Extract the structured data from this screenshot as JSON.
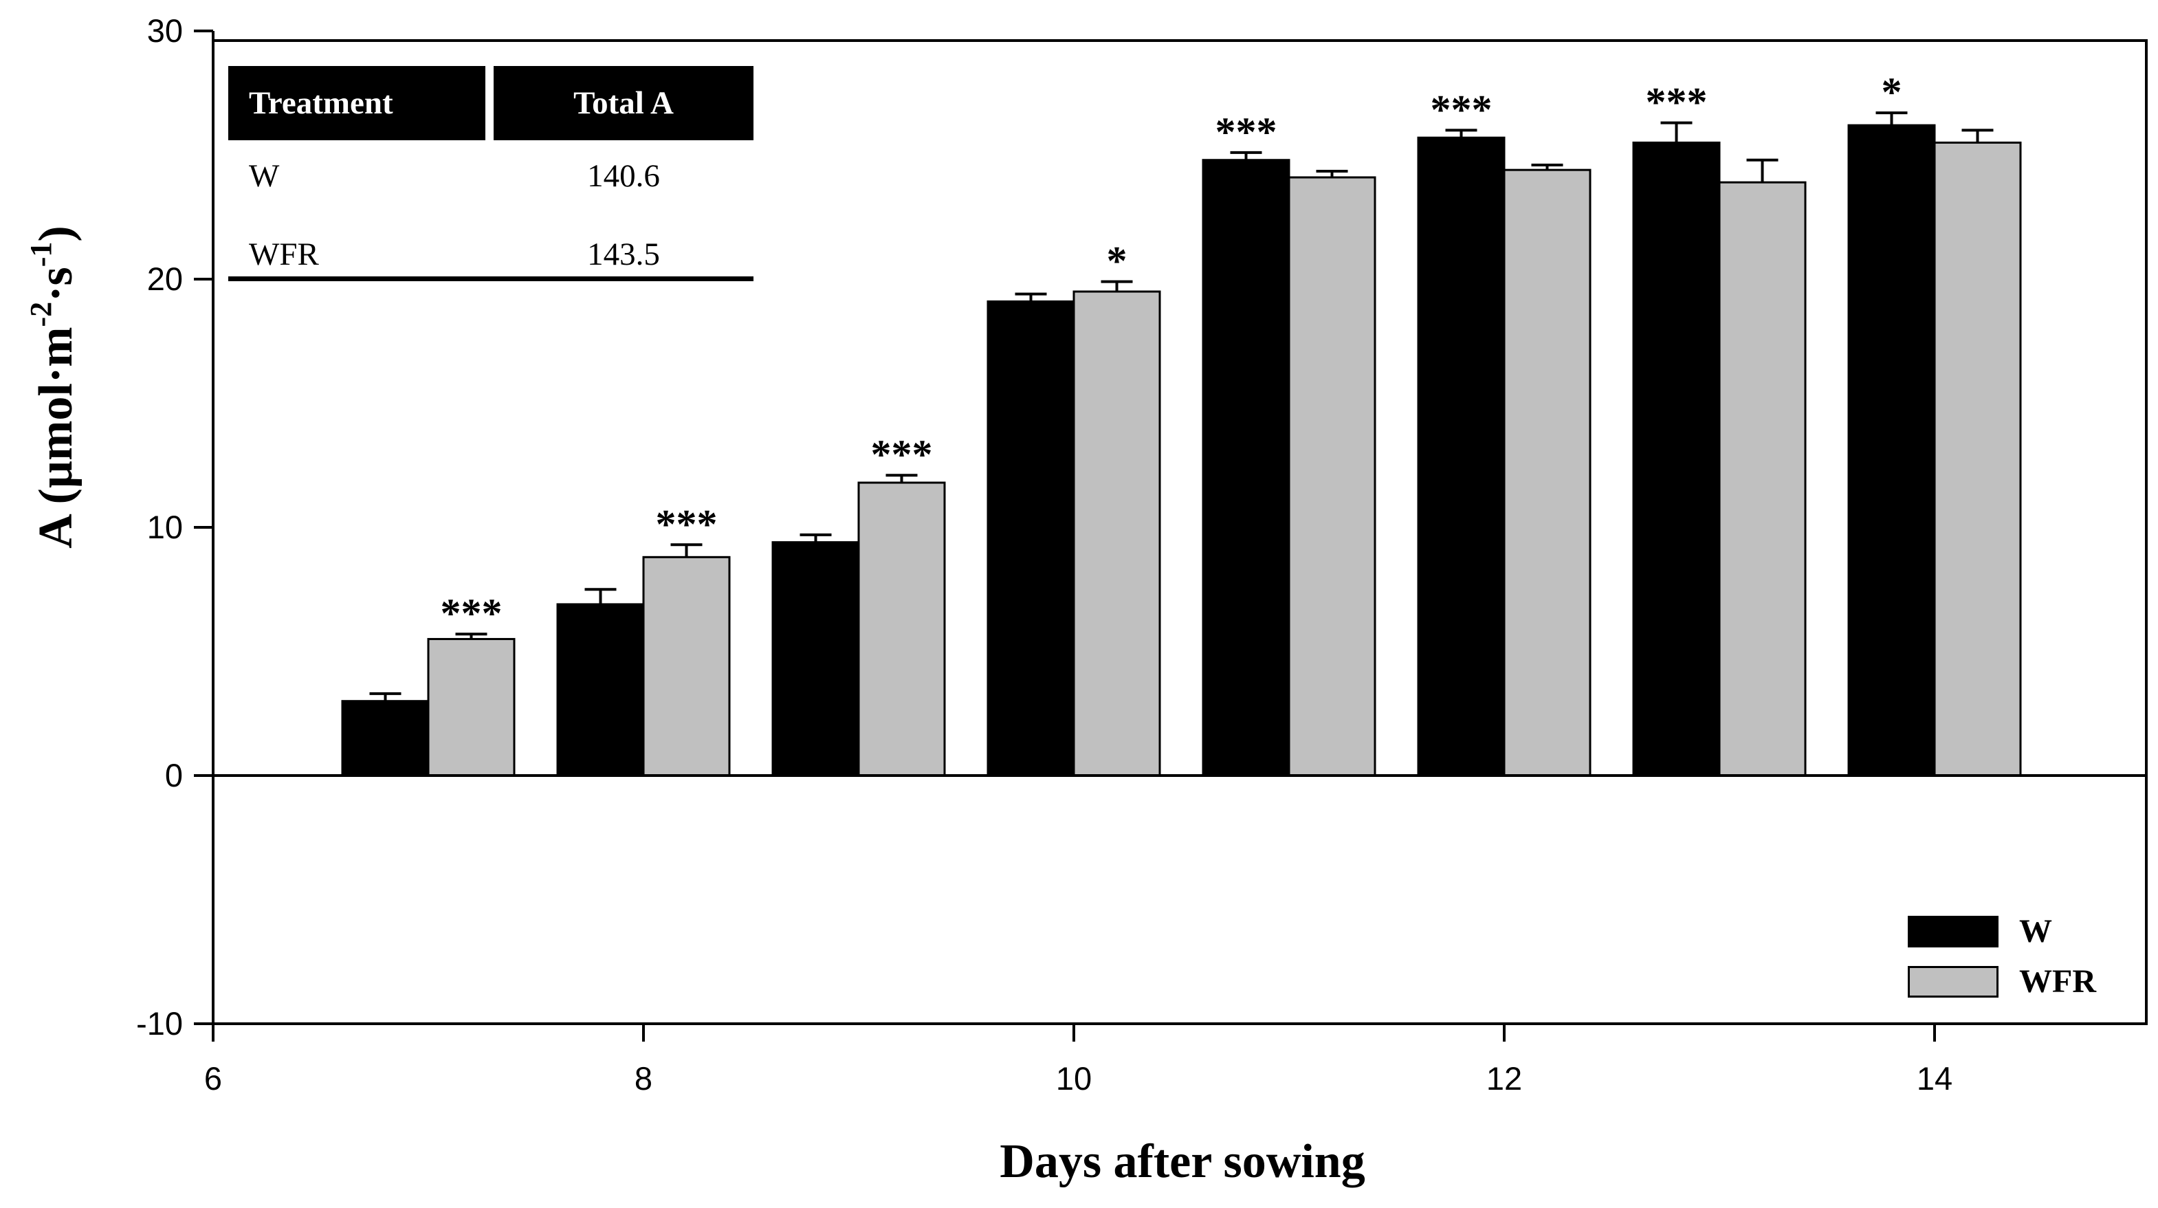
{
  "chart_data": {
    "type": "bar",
    "title": "",
    "xlabel": "Days after sowing",
    "ylabel": "A (µmol·m⁻²·s⁻¹)",
    "ylabel_parts": {
      "pre": "A (µmol·m",
      "sup1": "-2",
      "mid": "·s",
      "sup2": "-1",
      "post": ")"
    },
    "categories": [
      7,
      8,
      9,
      10,
      11,
      12,
      13,
      14
    ],
    "series": [
      {
        "name": "W",
        "color": "#000000",
        "values": [
          3.0,
          6.9,
          9.4,
          19.1,
          24.8,
          25.7,
          25.5,
          26.2
        ],
        "errors": [
          0.3,
          0.6,
          0.3,
          0.3,
          0.3,
          0.3,
          0.8,
          0.5
        ]
      },
      {
        "name": "WFR",
        "color": "#c0c0c0",
        "values": [
          5.5,
          8.8,
          11.8,
          19.5,
          24.1,
          24.4,
          23.9,
          25.5
        ],
        "errors": [
          0.2,
          0.5,
          0.3,
          0.4,
          0.25,
          0.2,
          0.9,
          0.5
        ]
      }
    ],
    "significance": [
      {
        "day": 7,
        "label": "***",
        "series": "WFR"
      },
      {
        "day": 8,
        "label": "***",
        "series": "WFR"
      },
      {
        "day": 9,
        "label": "***",
        "series": "WFR"
      },
      {
        "day": 10,
        "label": "*",
        "series": "WFR"
      },
      {
        "day": 11,
        "label": "***",
        "series": "W"
      },
      {
        "day": 12,
        "label": "***",
        "series": "W"
      },
      {
        "day": 13,
        "label": "***",
        "series": "W"
      },
      {
        "day": 14,
        "label": "*",
        "series": "W"
      }
    ],
    "xlim": [
      6,
      15
    ],
    "ylim": [
      -10,
      30
    ],
    "xticks": [
      6,
      8,
      10,
      12,
      14
    ],
    "yticks": [
      30,
      20,
      10,
      0,
      -10
    ],
    "bar_width_days": 0.4,
    "grid": false,
    "error_bars": "upper",
    "legend_position": "inside-bottom-right"
  },
  "inset_table": {
    "headers": [
      "Treatment",
      "Total A"
    ],
    "rows": [
      {
        "treatment": "W",
        "total": "140.6"
      },
      {
        "treatment": "WFR",
        "total": "143.5"
      }
    ],
    "header_bg": "#000000",
    "header_text_color": "#ffffff"
  },
  "legend": {
    "items": [
      {
        "label": "W",
        "color": "#000000"
      },
      {
        "label": "WFR",
        "color": "#c0c0c0"
      }
    ]
  },
  "colors": {
    "background": "#ffffff",
    "axis": "#000000",
    "bar_black": "#000000",
    "bar_gray": "#c0c0c0"
  }
}
